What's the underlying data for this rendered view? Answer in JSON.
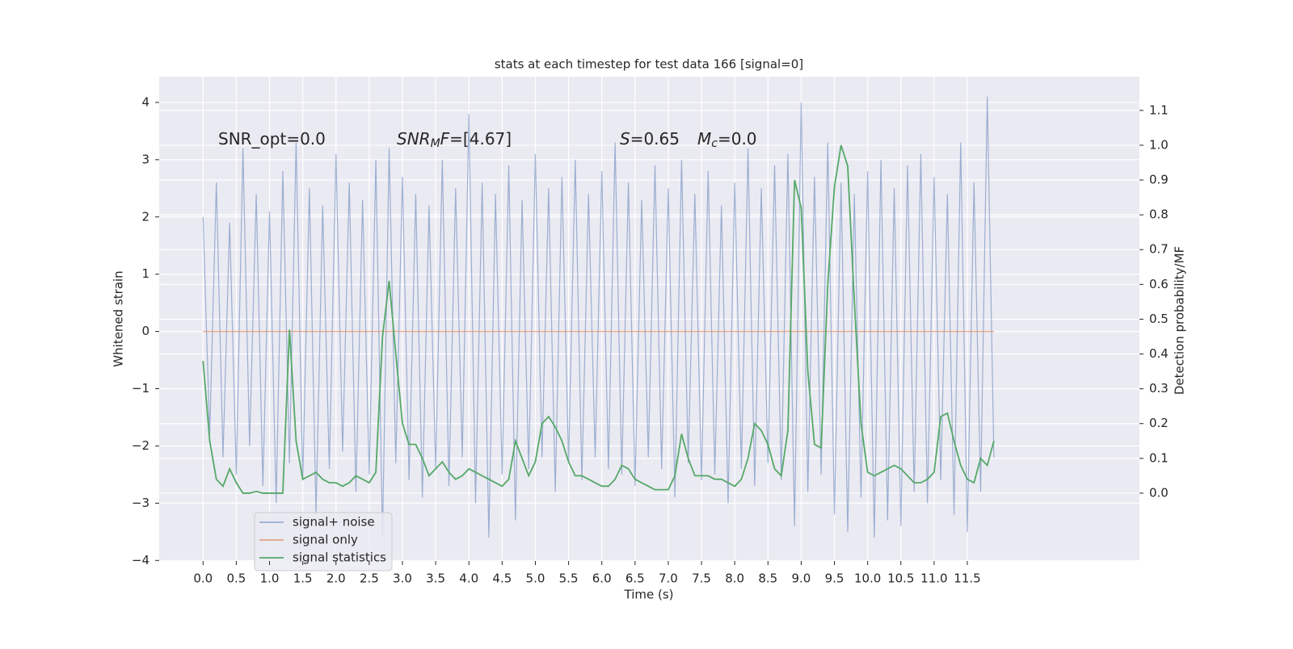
{
  "chart_data": {
    "type": "line",
    "title": "stats at each timestep for test data 166 [signal=0]",
    "xlabel": "Time (s)",
    "ylabel": "Whitened strain",
    "y2label": "Detection probability/MF",
    "annotations": [
      [
        "SNR_opt=0.0"
      ],
      [
        "SNR",
        "M",
        "F",
        "=[4.67]"
      ],
      [
        "S",
        "=0.65",
        "M",
        "c",
        "=0.0"
      ]
    ],
    "xlim": [
      -0.66,
      14.09
    ],
    "ylim": [
      -4.01,
      4.45
    ],
    "y2lim": [
      -0.195,
      1.197
    ],
    "xticks": [
      {
        "value": 0,
        "label": "0.0"
      },
      0.5,
      {
        "value": 1,
        "label": "1.0"
      },
      1.5,
      {
        "value": 2,
        "label": "2.0"
      },
      2.5,
      {
        "value": 3,
        "label": "3.0"
      },
      3.5,
      {
        "value": 4,
        "label": "4.0"
      },
      4.5,
      {
        "value": 5,
        "label": "5.0"
      },
      5.5,
      {
        "value": 6,
        "label": "6.0"
      },
      6.5,
      {
        "value": 7,
        "label": "7.0"
      },
      7.5,
      {
        "value": 8,
        "label": "8.0"
      },
      8.5,
      {
        "value": 9,
        "label": "9.0"
      },
      9.5,
      {
        "value": 10,
        "label": "10.0"
      },
      10.5,
      {
        "value": 11,
        "label": "11.0"
      },
      11.5
    ],
    "yticks": [
      {
        "value": -4,
        "label": "−4"
      },
      {
        "value": -3,
        "label": "−3"
      },
      {
        "value": -2,
        "label": "−2"
      },
      {
        "value": -1,
        "label": "−1"
      },
      0,
      1,
      2,
      3,
      4
    ],
    "y2ticks": [
      {
        "value": 0,
        "label": "0.0"
      },
      0.1,
      0.2,
      0.3,
      0.4,
      0.5,
      0.6,
      0.7,
      0.8,
      0.9,
      {
        "value": 1,
        "label": "1.0"
      },
      1.1
    ],
    "grid": true,
    "legend": "lower left",
    "x": [
      0.0,
      0.1,
      0.2,
      0.3,
      0.4,
      0.5,
      0.6,
      0.7,
      0.8,
      0.9,
      1.0,
      1.1,
      1.2,
      1.3,
      1.4,
      1.5,
      1.6,
      1.7,
      1.8,
      1.9,
      2.0,
      2.1,
      2.2,
      2.3,
      2.4,
      2.5,
      2.6,
      2.7,
      2.8,
      2.9,
      3.0,
      3.1,
      3.2,
      3.3,
      3.4,
      3.5,
      3.6,
      3.7,
      3.8,
      3.9,
      4.0,
      4.1,
      4.2,
      4.3,
      4.4,
      4.5,
      4.6,
      4.7,
      4.8,
      4.9,
      5.0,
      5.1,
      5.2,
      5.3,
      5.4,
      5.5,
      5.6,
      5.7,
      5.8,
      5.9,
      6.0,
      6.1,
      6.2,
      6.3,
      6.4,
      6.5,
      6.6,
      6.7,
      6.8,
      6.9,
      7.0,
      7.1,
      7.2,
      7.3,
      7.4,
      7.5,
      7.6,
      7.7,
      7.8,
      7.9,
      8.0,
      8.1,
      8.2,
      8.3,
      8.4,
      8.5,
      8.6,
      8.7,
      8.8,
      8.9,
      9.0,
      9.1,
      9.2,
      9.3,
      9.4,
      9.5,
      9.6,
      9.7,
      9.8,
      9.9,
      10.0,
      10.1,
      10.2,
      10.3,
      10.4,
      10.5,
      10.6,
      10.7,
      10.8,
      10.9,
      11.0,
      11.1,
      11.2,
      11.3,
      11.4,
      11.5,
      11.6,
      11.7,
      11.8,
      11.9
    ],
    "series": [
      {
        "name": "signal+ noise",
        "color": "#4c72b0",
        "opacity": 0.5,
        "values": [
          2.0,
          -1.8,
          2.6,
          -2.2,
          1.9,
          -2.5,
          3.2,
          -2.0,
          2.4,
          -2.7,
          2.1,
          -3.0,
          2.8,
          -2.3,
          3.3,
          -2.6,
          2.5,
          -3.2,
          2.2,
          -2.4,
          3.1,
          -2.1,
          2.6,
          -2.8,
          2.3,
          -2.5,
          3.0,
          -3.6,
          3.2,
          -2.3,
          2.7,
          -2.6,
          2.4,
          -2.9,
          2.2,
          -2.4,
          3.0,
          -2.7,
          2.5,
          -2.2,
          3.8,
          -3.0,
          2.6,
          -3.6,
          2.4,
          -2.5,
          2.9,
          -3.3,
          2.3,
          -2.4,
          3.1,
          -2.2,
          2.5,
          -2.8,
          2.7,
          -2.3,
          3.0,
          -2.6,
          2.4,
          -2.2,
          2.8,
          -2.4,
          3.3,
          -2.5,
          2.6,
          -2.7,
          2.3,
          -2.2,
          2.9,
          -2.4,
          2.5,
          -2.9,
          3.0,
          -2.3,
          2.4,
          -2.6,
          2.8,
          -2.5,
          2.2,
          -3.0,
          2.6,
          -2.4,
          3.2,
          -2.7,
          2.5,
          -2.3,
          2.9,
          -2.6,
          3.1,
          -3.4,
          4.0,
          -2.8,
          2.7,
          -2.5,
          3.3,
          -3.2,
          2.6,
          -3.5,
          2.4,
          -2.9,
          2.8,
          -3.6,
          3.0,
          -3.3,
          2.5,
          -3.4,
          2.9,
          -2.8,
          3.1,
          -3.0,
          2.7,
          -2.6,
          2.4,
          -3.2,
          3.3,
          -3.5,
          2.6,
          -2.8,
          4.1,
          -2.2
        ]
      },
      {
        "name": "signal only",
        "color": "#dd8452",
        "opacity": 0.7,
        "values": [
          0,
          0,
          0,
          0,
          0,
          0,
          0,
          0,
          0,
          0,
          0,
          0,
          0,
          0,
          0,
          0,
          0,
          0,
          0,
          0,
          0,
          0,
          0,
          0,
          0,
          0,
          0,
          0,
          0,
          0,
          0,
          0,
          0,
          0,
          0,
          0,
          0,
          0,
          0,
          0,
          0,
          0,
          0,
          0,
          0,
          0,
          0,
          0,
          0,
          0,
          0,
          0,
          0,
          0,
          0,
          0,
          0,
          0,
          0,
          0,
          0,
          0,
          0,
          0,
          0,
          0,
          0,
          0,
          0,
          0,
          0,
          0,
          0,
          0,
          0,
          0,
          0,
          0,
          0,
          0,
          0,
          0,
          0,
          0,
          0,
          0,
          0,
          0,
          0,
          0,
          0,
          0,
          0,
          0,
          0,
          0,
          0,
          0,
          0,
          0,
          0,
          0,
          0,
          0,
          0,
          0,
          0,
          0,
          0,
          0,
          0,
          0,
          0,
          0,
          0,
          0,
          0,
          0,
          0,
          0
        ]
      },
      {
        "name": "signal statistics",
        "color": "#55a868",
        "opacity": 1,
        "axis": "y2",
        "values": [
          0.38,
          0.15,
          0.04,
          0.02,
          0.07,
          0.03,
          0.0,
          0.0,
          0.005,
          0.0,
          0.0,
          0.0,
          0.0,
          0.47,
          0.15,
          0.04,
          0.05,
          0.06,
          0.04,
          0.03,
          0.03,
          0.02,
          0.03,
          0.05,
          0.04,
          0.03,
          0.06,
          0.45,
          0.61,
          0.4,
          0.2,
          0.14,
          0.14,
          0.1,
          0.05,
          0.07,
          0.09,
          0.06,
          0.04,
          0.05,
          0.07,
          0.06,
          0.05,
          0.04,
          0.03,
          0.02,
          0.04,
          0.15,
          0.1,
          0.05,
          0.09,
          0.2,
          0.22,
          0.19,
          0.15,
          0.09,
          0.05,
          0.05,
          0.04,
          0.03,
          0.02,
          0.02,
          0.04,
          0.08,
          0.07,
          0.04,
          0.03,
          0.02,
          0.01,
          0.01,
          0.01,
          0.05,
          0.17,
          0.1,
          0.05,
          0.05,
          0.05,
          0.04,
          0.04,
          0.03,
          0.02,
          0.04,
          0.1,
          0.2,
          0.18,
          0.14,
          0.07,
          0.05,
          0.18,
          0.9,
          0.82,
          0.35,
          0.14,
          0.13,
          0.6,
          0.88,
          1.0,
          0.94,
          0.55,
          0.2,
          0.06,
          0.05,
          0.06,
          0.07,
          0.08,
          0.07,
          0.05,
          0.03,
          0.03,
          0.04,
          0.06,
          0.22,
          0.23,
          0.15,
          0.08,
          0.04,
          0.03,
          0.1,
          0.08,
          0.15
        ]
      }
    ]
  }
}
